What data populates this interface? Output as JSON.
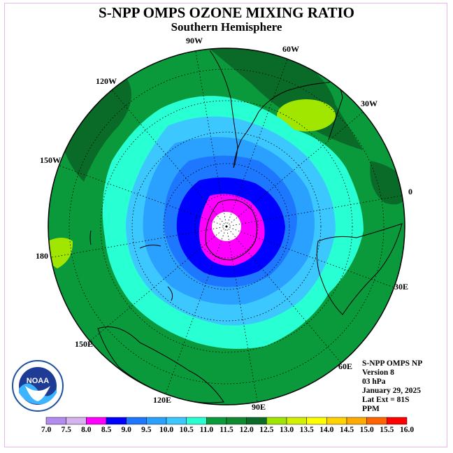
{
  "title": "S-NPP OMPS OZONE MIXING RATIO",
  "subtitle": "Southern Hemisphere",
  "longitude_labels": [
    "90W",
    "60W",
    "30W",
    "0",
    "30E",
    "60E",
    "90E",
    "120E",
    "150E",
    "180",
    "150W",
    "120W"
  ],
  "info": {
    "instrument": "S-NPP OMPS NP",
    "version": "Version 8",
    "pressure": "03 hPa",
    "date": "January 29, 2025",
    "lat_ext": "Lat Ext = 81S",
    "units": "PPM"
  },
  "logo_text": "NOAA",
  "colorbar": {
    "ticks": [
      "7.0",
      "7.5",
      "8.0",
      "8.5",
      "9.0",
      "9.5",
      "10.0",
      "10.5",
      "11.0",
      "11.5",
      "12.0",
      "12.5",
      "13.0",
      "13.5",
      "14.0",
      "14.5",
      "15.0",
      "15.5",
      "16.0"
    ],
    "colors": [
      "#b48cf0",
      "#d6b4f0",
      "#ff00ff",
      "#0000ff",
      "#1e78ff",
      "#2aa0ff",
      "#3cc8ff",
      "#28ffd2",
      "#0a9a3c",
      "#0f8a30",
      "#0a6b28",
      "#a0e600",
      "#d2f000",
      "#ffff00",
      "#ffd200",
      "#ffaa00",
      "#ff6400",
      "#ff0000",
      "#8b5a3c"
    ]
  },
  "palette": {
    "center_white": "#ffffff",
    "magenta": "#ff00ff",
    "blue": "#0000ff",
    "mid_blue": "#1e78ff",
    "light_blue": "#2aa0ff",
    "sky_blue": "#3cc8ff",
    "cyan": "#28ffd2",
    "green": "#0a9a3c",
    "dark_green": "#0a6b28",
    "lime": "#a0e600"
  }
}
